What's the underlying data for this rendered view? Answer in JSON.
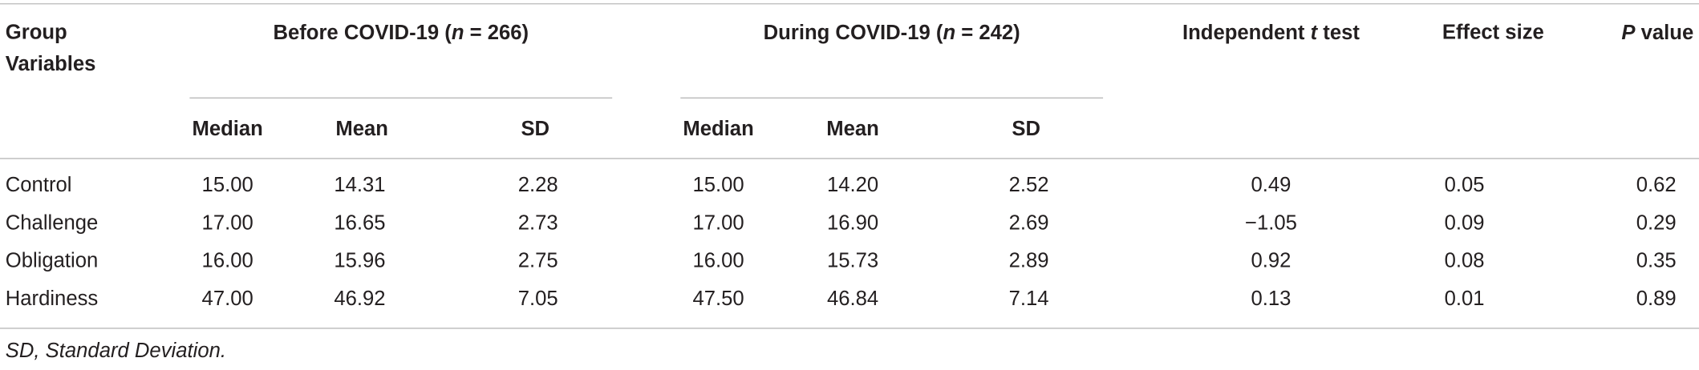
{
  "table": {
    "header": {
      "group": [
        "Group",
        "Variables"
      ],
      "before": [
        "Before COVID-19 (",
        "n",
        " = 266)"
      ],
      "during": [
        "During COVID-19 (",
        "n",
        " = 242)"
      ],
      "ttest": [
        "Independent ",
        "t",
        " test"
      ],
      "effect": "Effect size",
      "pvalue": [
        "P",
        " value"
      ],
      "sub": [
        "Median",
        "Mean",
        "SD",
        "Median",
        "Mean",
        "SD"
      ]
    },
    "rows": [
      {
        "label": "Control",
        "values": [
          "15.00",
          "14.31",
          "2.28",
          "15.00",
          "14.20",
          "2.52",
          "0.49",
          "0.05",
          "0.62"
        ]
      },
      {
        "label": "Challenge",
        "values": [
          "17.00",
          "16.65",
          "2.73",
          "17.00",
          "16.90",
          "2.69",
          "−1.05",
          "0.09",
          "0.29"
        ]
      },
      {
        "label": "Obligation",
        "values": [
          "16.00",
          "15.96",
          "2.75",
          "16.00",
          "15.73",
          "2.89",
          "0.92",
          "0.08",
          "0.35"
        ]
      },
      {
        "label": "Hardiness",
        "values": [
          "47.00",
          "46.92",
          "7.05",
          "47.50",
          "46.84",
          "7.14",
          "0.13",
          "0.01",
          "0.89"
        ]
      }
    ],
    "footnote": "SD, Standard Deviation."
  }
}
